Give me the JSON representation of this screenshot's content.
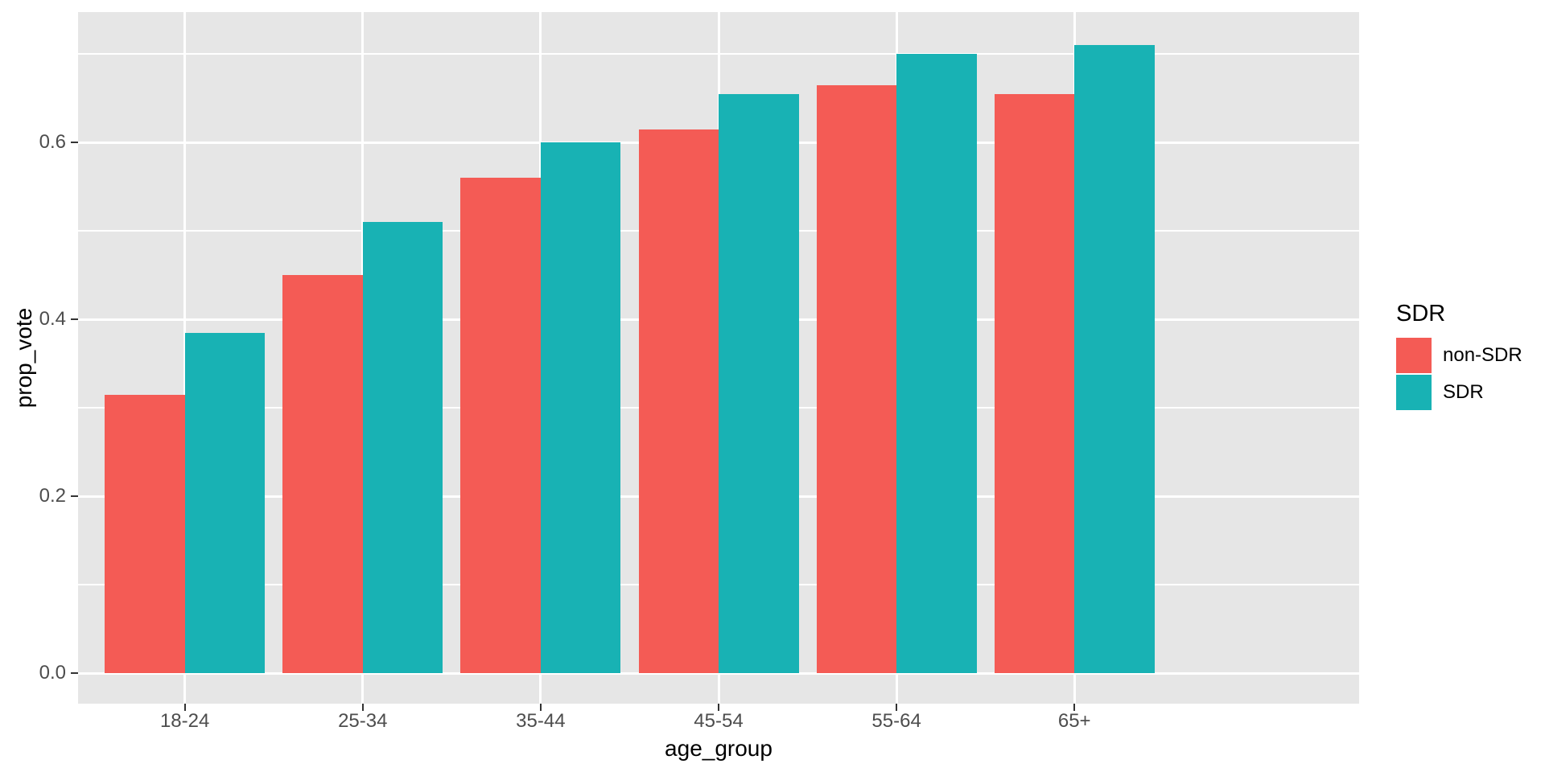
{
  "chart_data": {
    "type": "bar",
    "title": "",
    "xlabel": "age_group",
    "ylabel": "prop_vote",
    "categories": [
      "18-24",
      "25-34",
      "35-44",
      "45-54",
      "55-64",
      "65+"
    ],
    "series": [
      {
        "name": "non-SDR",
        "color": "#F45B55",
        "values": [
          0.315,
          0.45,
          0.56,
          0.615,
          0.665,
          0.655
        ]
      },
      {
        "name": "SDR",
        "color": "#18B2B4",
        "values": [
          0.385,
          0.51,
          0.6,
          0.655,
          0.7,
          0.71
        ]
      }
    ],
    "y_ticks": [
      0.0,
      0.2,
      0.4,
      0.6
    ],
    "y_tick_labels": [
      "0.0",
      "0.2",
      "0.4",
      "0.6"
    ],
    "y_minor_gridlines": [
      0.1,
      0.3,
      0.5,
      0.7
    ],
    "ylim": [
      -0.035,
      0.747
    ],
    "grid": true,
    "legend": {
      "title": "SDR",
      "position": "right",
      "entries": [
        {
          "label": "non-SDR",
          "color": "#F45B55"
        },
        {
          "label": "SDR",
          "color": "#18B2B4"
        }
      ]
    }
  },
  "colors": {
    "background": "#FFFFFF",
    "panel_bg": "#E6E6E6",
    "grid": "#FFFFFF",
    "tick_label": "#4D4D4D",
    "axis_title": "#000000",
    "tick_mark": "#333333"
  }
}
